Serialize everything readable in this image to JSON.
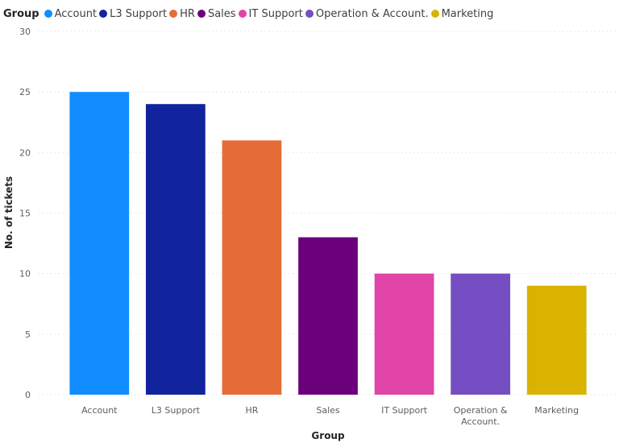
{
  "legend": {
    "title": "Group"
  },
  "chart_data": {
    "type": "bar",
    "categories": [
      "Account",
      "L3 Support",
      "HR",
      "Sales",
      "IT Support",
      "Operation & Account.",
      "Marketing"
    ],
    "category_tick_lines": [
      [
        "Account"
      ],
      [
        "L3 Support"
      ],
      [
        "HR"
      ],
      [
        "Sales"
      ],
      [
        "IT Support"
      ],
      [
        "Operation &",
        "Account."
      ],
      [
        "Marketing"
      ]
    ],
    "values": [
      25,
      24,
      21,
      13,
      10,
      10,
      9
    ],
    "colors": [
      "#118DFF",
      "#12239E",
      "#E66C37",
      "#6B007B",
      "#E044A7",
      "#744EC2",
      "#D9B300"
    ],
    "xlabel": "Group",
    "ylabel": "No. of tickets",
    "ylim": [
      0,
      30
    ],
    "yticks": [
      0,
      5,
      10,
      15,
      20,
      25,
      30
    ],
    "grid": true,
    "legend_position": "top-left"
  }
}
